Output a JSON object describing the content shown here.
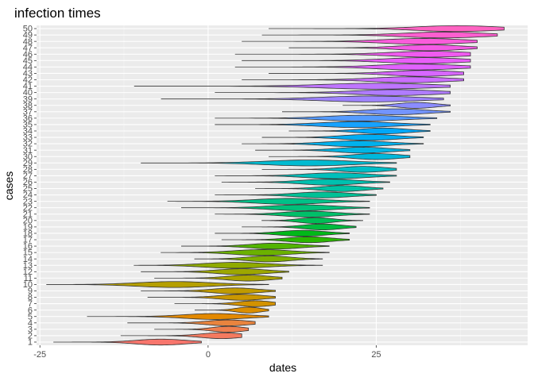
{
  "chart_data": {
    "type": "violin",
    "title": "infection times",
    "xlabel": "dates",
    "ylabel": "cases",
    "xlim": [
      -25.5,
      47.5
    ],
    "x_ticks": [
      -25,
      0,
      25
    ],
    "x_tick_labels": [
      "-25",
      "0",
      "25"
    ],
    "categories": [
      "1",
      "2",
      "3",
      "4",
      "5",
      "6",
      "7",
      "8",
      "9",
      "10",
      "11",
      "12",
      "13",
      "14",
      "15",
      "16",
      "17",
      "18",
      "19",
      "20",
      "21",
      "22",
      "23",
      "24",
      "25",
      "26",
      "27",
      "28",
      "29",
      "30",
      "31",
      "32",
      "33",
      "34",
      "35",
      "36",
      "37",
      "38",
      "39",
      "40",
      "41",
      "42",
      "43",
      "44",
      "45",
      "46",
      "47",
      "48",
      "49",
      "50"
    ],
    "series": [
      {
        "case": "1",
        "min": -23,
        "max": -1,
        "peak": -7,
        "color": "#F8766D"
      },
      {
        "case": "2",
        "min": -13,
        "max": 5,
        "peak": 2,
        "color": "#F47A5F"
      },
      {
        "case": "3",
        "min": -8,
        "max": 6,
        "peak": 3,
        "color": "#EF7F4F"
      },
      {
        "case": "4",
        "min": -12,
        "max": 7,
        "peak": 3,
        "color": "#E9843E"
      },
      {
        "case": "5",
        "min": -18,
        "max": 9,
        "peak": 1,
        "color": "#E38900"
      },
      {
        "case": "6",
        "min": -2,
        "max": 9,
        "peak": 6,
        "color": "#DB8E00"
      },
      {
        "case": "7",
        "min": -5,
        "max": 10,
        "peak": 7,
        "color": "#D39200"
      },
      {
        "case": "8",
        "min": -9,
        "max": 10,
        "peak": 5,
        "color": "#CA9700"
      },
      {
        "case": "9",
        "min": -10,
        "max": 10,
        "peak": 4,
        "color": "#C09B00"
      },
      {
        "case": "10",
        "min": -24,
        "max": 9,
        "peak": -5,
        "color": "#B59F00"
      },
      {
        "case": "11",
        "min": -8,
        "max": 11,
        "peak": 6,
        "color": "#AAA300"
      },
      {
        "case": "12",
        "min": -10,
        "max": 12,
        "peak": 5,
        "color": "#9DA700"
      },
      {
        "case": "13",
        "min": -11,
        "max": 17,
        "peak": 4,
        "color": "#8FAA00"
      },
      {
        "case": "14",
        "min": -2,
        "max": 17,
        "peak": 9,
        "color": "#7FAE00"
      },
      {
        "case": "15",
        "min": -7,
        "max": 18,
        "peak": 8,
        "color": "#6BB100"
      },
      {
        "case": "16",
        "min": -4,
        "max": 18,
        "peak": 10,
        "color": "#52B400"
      },
      {
        "case": "17",
        "min": 2,
        "max": 21,
        "peak": 15,
        "color": "#2AB700"
      },
      {
        "case": "18",
        "min": 1,
        "max": 21,
        "peak": 14,
        "color": "#00B919"
      },
      {
        "case": "19",
        "min": 5,
        "max": 22,
        "peak": 17,
        "color": "#00BB3E"
      },
      {
        "case": "20",
        "min": 8,
        "max": 23,
        "peak": 16,
        "color": "#00BD56"
      },
      {
        "case": "21",
        "min": 1,
        "max": 24,
        "peak": 15,
        "color": "#00BF69"
      },
      {
        "case": "22",
        "min": -4,
        "max": 24,
        "peak": 14,
        "color": "#00C079"
      },
      {
        "case": "23",
        "min": -6,
        "max": 24,
        "peak": 12,
        "color": "#00C188"
      },
      {
        "case": "24",
        "min": 1,
        "max": 25,
        "peak": 17,
        "color": "#00C196"
      },
      {
        "case": "25",
        "min": 7,
        "max": 26,
        "peak": 20,
        "color": "#00C1A3"
      },
      {
        "case": "26",
        "min": 2,
        "max": 27,
        "peak": 18,
        "color": "#00C0AF"
      },
      {
        "case": "27",
        "min": 1,
        "max": 28,
        "peak": 19,
        "color": "#00BFBB"
      },
      {
        "case": "28",
        "min": 8,
        "max": 28,
        "peak": 23,
        "color": "#00BDC6"
      },
      {
        "case": "29",
        "min": -10,
        "max": 28,
        "peak": 15,
        "color": "#00BBD1"
      },
      {
        "case": "30",
        "min": 9,
        "max": 30,
        "peak": 25,
        "color": "#00B8DB"
      },
      {
        "case": "31",
        "min": 7,
        "max": 30,
        "peak": 23,
        "color": "#00B5E4"
      },
      {
        "case": "32",
        "min": 5,
        "max": 32,
        "peak": 22,
        "color": "#00B1ED"
      },
      {
        "case": "33",
        "min": 8,
        "max": 32,
        "peak": 24,
        "color": "#00ADF4"
      },
      {
        "case": "34",
        "min": 12,
        "max": 33,
        "peak": 26,
        "color": "#00A8FA"
      },
      {
        "case": "35",
        "min": 1,
        "max": 33,
        "peak": 22,
        "color": "#16A2FF"
      },
      {
        "case": "36",
        "min": 1,
        "max": 34,
        "peak": 23,
        "color": "#549BFF"
      },
      {
        "case": "37",
        "min": 11,
        "max": 36,
        "peak": 28,
        "color": "#7394FF"
      },
      {
        "case": "38",
        "min": 20,
        "max": 36,
        "peak": 31,
        "color": "#8B8CFF"
      },
      {
        "case": "39",
        "min": -7,
        "max": 35,
        "peak": 24,
        "color": "#9F84FF"
      },
      {
        "case": "40",
        "min": 1,
        "max": 36,
        "peak": 28,
        "color": "#B07CFF"
      },
      {
        "case": "41",
        "min": -11,
        "max": 36,
        "peak": 25,
        "color": "#BF75FF"
      },
      {
        "case": "42",
        "min": 5,
        "max": 38,
        "peak": 30,
        "color": "#CC6EFF"
      },
      {
        "case": "43",
        "min": 9,
        "max": 38,
        "peak": 32,
        "color": "#D767FF"
      },
      {
        "case": "44",
        "min": 4,
        "max": 39,
        "peak": 31,
        "color": "#E162FE"
      },
      {
        "case": "45",
        "min": 5,
        "max": 39,
        "peak": 32,
        "color": "#E95EF8"
      },
      {
        "case": "46",
        "min": 4,
        "max": 39,
        "peak": 33,
        "color": "#F05BF0"
      },
      {
        "case": "47",
        "min": 12,
        "max": 40,
        "peak": 33,
        "color": "#F55BE6"
      },
      {
        "case": "48",
        "min": 5,
        "max": 40,
        "peak": 32,
        "color": "#FA5CDB"
      },
      {
        "case": "49",
        "min": 8,
        "max": 43,
        "peak": 35,
        "color": "#FD5FCF"
      },
      {
        "case": "50",
        "min": 9,
        "max": 44,
        "peak": 37,
        "color": "#FF63C2"
      }
    ],
    "grid": true,
    "legend": "none",
    "colors": {
      "panel_bg": "#EBEBEB",
      "grid_major": "#FFFFFF",
      "grid_minor": "#F5F5F5",
      "outline": "#333333",
      "tick_text": "#4D4D4D"
    }
  }
}
